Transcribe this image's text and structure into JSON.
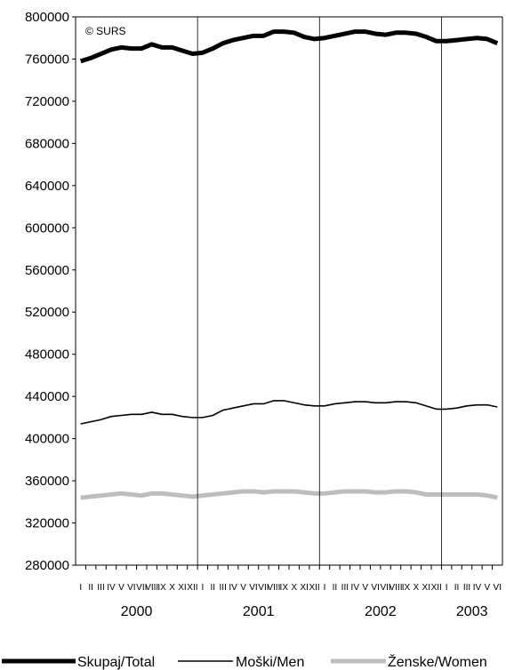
{
  "chart_data": {
    "type": "line",
    "copyright": "© SURS",
    "ylim": [
      280000,
      800000
    ],
    "yticks": [
      280000,
      320000,
      360000,
      400000,
      440000,
      480000,
      520000,
      560000,
      600000,
      640000,
      680000,
      720000,
      760000,
      800000
    ],
    "grid": false,
    "legend_position": "bottom",
    "years": [
      {
        "label": "2000",
        "months": 12
      },
      {
        "label": "2001",
        "months": 12
      },
      {
        "label": "2002",
        "months": 12
      },
      {
        "label": "2003",
        "months": 6
      }
    ],
    "month_labels": [
      "I",
      "II",
      "III",
      "IV",
      "V",
      "VI",
      "VII",
      "VIII",
      "IX",
      "X",
      "XI",
      "XII"
    ],
    "series": [
      {
        "name": "Skupaj/Total",
        "color": "#000000",
        "width": 5,
        "values": [
          758000,
          761000,
          765000,
          769000,
          771000,
          770000,
          770000,
          774000,
          771000,
          771000,
          768000,
          765000,
          766000,
          770000,
          775000,
          778000,
          780000,
          782000,
          782000,
          786000,
          786000,
          785000,
          781000,
          779000,
          780000,
          782000,
          784000,
          786000,
          786000,
          784000,
          783000,
          785000,
          785000,
          784000,
          781000,
          777000,
          777000,
          778000,
          779000,
          780000,
          779000,
          775000
        ]
      },
      {
        "name": "Moški/Men",
        "color": "#000000",
        "width": 1.6,
        "values": [
          414000,
          416000,
          418000,
          421000,
          422000,
          423000,
          423000,
          425000,
          423000,
          423000,
          421000,
          420000,
          420000,
          422000,
          427000,
          429000,
          431000,
          433000,
          433000,
          436000,
          436000,
          434000,
          432000,
          431000,
          431000,
          433000,
          434000,
          435000,
          435000,
          434000,
          434000,
          435000,
          435000,
          434000,
          431000,
          428000,
          428000,
          429000,
          431000,
          432000,
          432000,
          430000
        ]
      },
      {
        "name": "Ženske/Women",
        "color": "#bdbdbd",
        "width": 5,
        "values": [
          344000,
          345000,
          346000,
          347000,
          348000,
          347000,
          346000,
          348000,
          348000,
          347000,
          346000,
          345000,
          346000,
          347000,
          348000,
          349000,
          350000,
          350000,
          349000,
          350000,
          350000,
          350000,
          349000,
          348000,
          348000,
          349000,
          350000,
          350000,
          350000,
          349000,
          349000,
          350000,
          350000,
          349000,
          347000,
          347000,
          347000,
          347000,
          347000,
          347000,
          346000,
          344000
        ]
      }
    ]
  }
}
